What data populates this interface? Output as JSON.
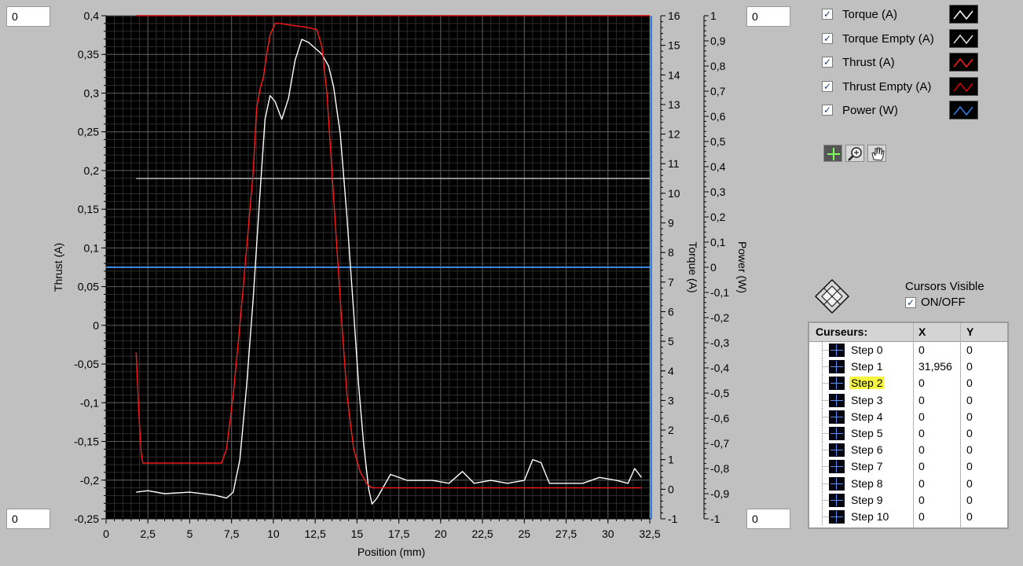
{
  "scale_inputs": {
    "left_top": "0",
    "left_bottom": "0",
    "right_top": "0",
    "right_bottom": "0"
  },
  "chart_data": {
    "type": "line",
    "xlabel": "Position (mm)",
    "ylabel_left": "Thrust (A)",
    "ylabel_right1": "Torque (A)",
    "ylabel_right2": "Power (W)",
    "xlim": [
      0,
      32.5
    ],
    "ylim_left": [
      -0.25,
      0.4
    ],
    "ylim_right1": [
      -1,
      16
    ],
    "ylim_right2": [
      -1,
      1
    ],
    "x_ticks": [
      "0",
      "2,5",
      "5",
      "7,5",
      "10",
      "12,5",
      "15",
      "17,5",
      "20",
      "22,5",
      "25",
      "27,5",
      "30",
      "32,5"
    ],
    "y_left_ticks": [
      "0,4",
      "0,35",
      "0,3",
      "0,25",
      "0,2",
      "0,15",
      "0,1",
      "0,05",
      "0",
      "-0,05",
      "-0,1",
      "-0,15",
      "-0,2",
      "-0,25"
    ],
    "y_right1_ticks": [
      "16",
      "15",
      "14",
      "13",
      "12",
      "11",
      "10",
      "9",
      "8",
      "7",
      "6",
      "5",
      "4",
      "3",
      "2",
      "1",
      "0",
      "-1"
    ],
    "y_right2_ticks": [
      "1",
      "0,9",
      "0,8",
      "0,7",
      "0,6",
      "0,5",
      "0,4",
      "0,3",
      "0,2",
      "0,1",
      "0",
      "-0,1",
      "-0,2",
      "-0,3",
      "-0,4",
      "-0,5",
      "-0,6",
      "-0,7",
      "-0,8",
      "-0,9",
      "-1"
    ],
    "grid": true,
    "series": [
      {
        "name": "Thrust (A)",
        "axis": "left",
        "color": "#ff1a1a",
        "points": [
          [
            1.8,
            -0.035
          ],
          [
            1.9,
            -0.085
          ],
          [
            2.0,
            -0.13
          ],
          [
            2.1,
            -0.165
          ],
          [
            2.2,
            -0.178
          ],
          [
            6.9,
            -0.178
          ],
          [
            7.2,
            -0.16
          ],
          [
            7.6,
            -0.09
          ],
          [
            8.0,
            0.0
          ],
          [
            8.4,
            0.1
          ],
          [
            8.8,
            0.2
          ],
          [
            9.0,
            0.28
          ],
          [
            9.2,
            0.305
          ],
          [
            9.4,
            0.32
          ],
          [
            9.6,
            0.35
          ],
          [
            9.8,
            0.375
          ],
          [
            10.1,
            0.39
          ],
          [
            10.4,
            0.39
          ],
          [
            11.0,
            0.388
          ],
          [
            12.0,
            0.385
          ],
          [
            12.6,
            0.382
          ],
          [
            12.9,
            0.36
          ],
          [
            13.2,
            0.3
          ],
          [
            13.5,
            0.2
          ],
          [
            13.8,
            0.1
          ],
          [
            14.1,
            0.0
          ],
          [
            14.4,
            -0.09
          ],
          [
            14.8,
            -0.16
          ],
          [
            15.2,
            -0.19
          ],
          [
            15.6,
            -0.205
          ],
          [
            15.9,
            -0.21
          ],
          [
            32.0,
            -0.21
          ]
        ]
      },
      {
        "name": "Thrust Empty (A)",
        "axis": "left",
        "color": "#cc0000",
        "points": [
          [
            1.8,
            0.4
          ],
          [
            32.5,
            0.4
          ]
        ]
      },
      {
        "name": "Torque (A)",
        "axis": "right1",
        "color": "#ffffff",
        "points": [
          [
            1.8,
            -0.1
          ],
          [
            2.5,
            -0.05
          ],
          [
            3.5,
            -0.15
          ],
          [
            5.0,
            -0.1
          ],
          [
            6.5,
            -0.2
          ],
          [
            7.2,
            -0.3
          ],
          [
            7.6,
            -0.1
          ],
          [
            8.0,
            1.0
          ],
          [
            8.4,
            3.5
          ],
          [
            8.8,
            6.5
          ],
          [
            9.2,
            10.0
          ],
          [
            9.5,
            12.5
          ],
          [
            9.8,
            13.3
          ],
          [
            10.1,
            13.1
          ],
          [
            10.5,
            12.5
          ],
          [
            10.9,
            13.2
          ],
          [
            11.3,
            14.5
          ],
          [
            11.7,
            15.2
          ],
          [
            12.1,
            15.1
          ],
          [
            12.5,
            14.9
          ],
          [
            12.9,
            14.7
          ],
          [
            13.3,
            14.3
          ],
          [
            13.6,
            13.6
          ],
          [
            14.0,
            12.0
          ],
          [
            14.4,
            9.2
          ],
          [
            14.8,
            6.0
          ],
          [
            15.1,
            3.5
          ],
          [
            15.4,
            1.5
          ],
          [
            15.7,
            0.0
          ],
          [
            15.9,
            -0.5
          ],
          [
            16.2,
            -0.3
          ],
          [
            17.0,
            0.5
          ],
          [
            18.0,
            0.3
          ],
          [
            19.5,
            0.3
          ],
          [
            20.5,
            0.2
          ],
          [
            21.3,
            0.6
          ],
          [
            22.0,
            0.2
          ],
          [
            23.0,
            0.3
          ],
          [
            24.0,
            0.2
          ],
          [
            25.0,
            0.3
          ],
          [
            25.5,
            1.0
          ],
          [
            26.0,
            0.9
          ],
          [
            26.5,
            0.2
          ],
          [
            27.5,
            0.2
          ],
          [
            28.5,
            0.2
          ],
          [
            29.5,
            0.4
          ],
          [
            30.5,
            0.3
          ],
          [
            31.2,
            0.2
          ],
          [
            31.6,
            0.7
          ],
          [
            32.0,
            0.4
          ]
        ]
      },
      {
        "name": "Torque Empty (A)",
        "axis": "right1",
        "color": "#c8c8c8",
        "points": [
          [
            1.8,
            10.5
          ],
          [
            32.5,
            10.5
          ]
        ]
      },
      {
        "name": "Power (W)",
        "axis": "right2",
        "color": "#3d88e0",
        "points": [
          [
            0,
            0.0
          ],
          [
            32.5,
            0.0
          ]
        ]
      }
    ]
  },
  "legend": {
    "items": [
      {
        "label": "Torque (A)",
        "checked": "✓",
        "color": "#ffffff"
      },
      {
        "label": "Torque Empty (A)",
        "checked": "✓",
        "color": "#e0e0e0"
      },
      {
        "label": "Thrust (A)",
        "checked": "✓",
        "color": "#ff1a1a"
      },
      {
        "label": "Thrust Empty (A)",
        "checked": "✓",
        "color": "#d40000"
      },
      {
        "label": "Power (W)",
        "checked": "✓",
        "color": "#2f7fe6"
      }
    ]
  },
  "tools": [
    "cursor-move-tool-icon",
    "zoom-tool-icon",
    "pan-hand-tool-icon"
  ],
  "cursor_control": {
    "title": "Cursors Visible",
    "toggle_label": "ON/OFF",
    "checked": "✓"
  },
  "cursors_table": {
    "headers": [
      "Curseurs:",
      "X",
      "Y"
    ],
    "rows": [
      {
        "name": "Step 0",
        "x": "0",
        "y": "0"
      },
      {
        "name": "Step 1",
        "x": "31,956",
        "y": "0"
      },
      {
        "name": "Step 2",
        "x": "0",
        "y": "0",
        "selected": true
      },
      {
        "name": "Step 3",
        "x": "0",
        "y": "0"
      },
      {
        "name": "Step 4",
        "x": "0",
        "y": "0"
      },
      {
        "name": "Step 5",
        "x": "0",
        "y": "0"
      },
      {
        "name": "Step 6",
        "x": "0",
        "y": "0"
      },
      {
        "name": "Step 7",
        "x": "0",
        "y": "0"
      },
      {
        "name": "Step 8",
        "x": "0",
        "y": "0"
      },
      {
        "name": "Step 9",
        "x": "0",
        "y": "0"
      },
      {
        "name": "Step 10",
        "x": "0",
        "y": "0"
      }
    ]
  }
}
